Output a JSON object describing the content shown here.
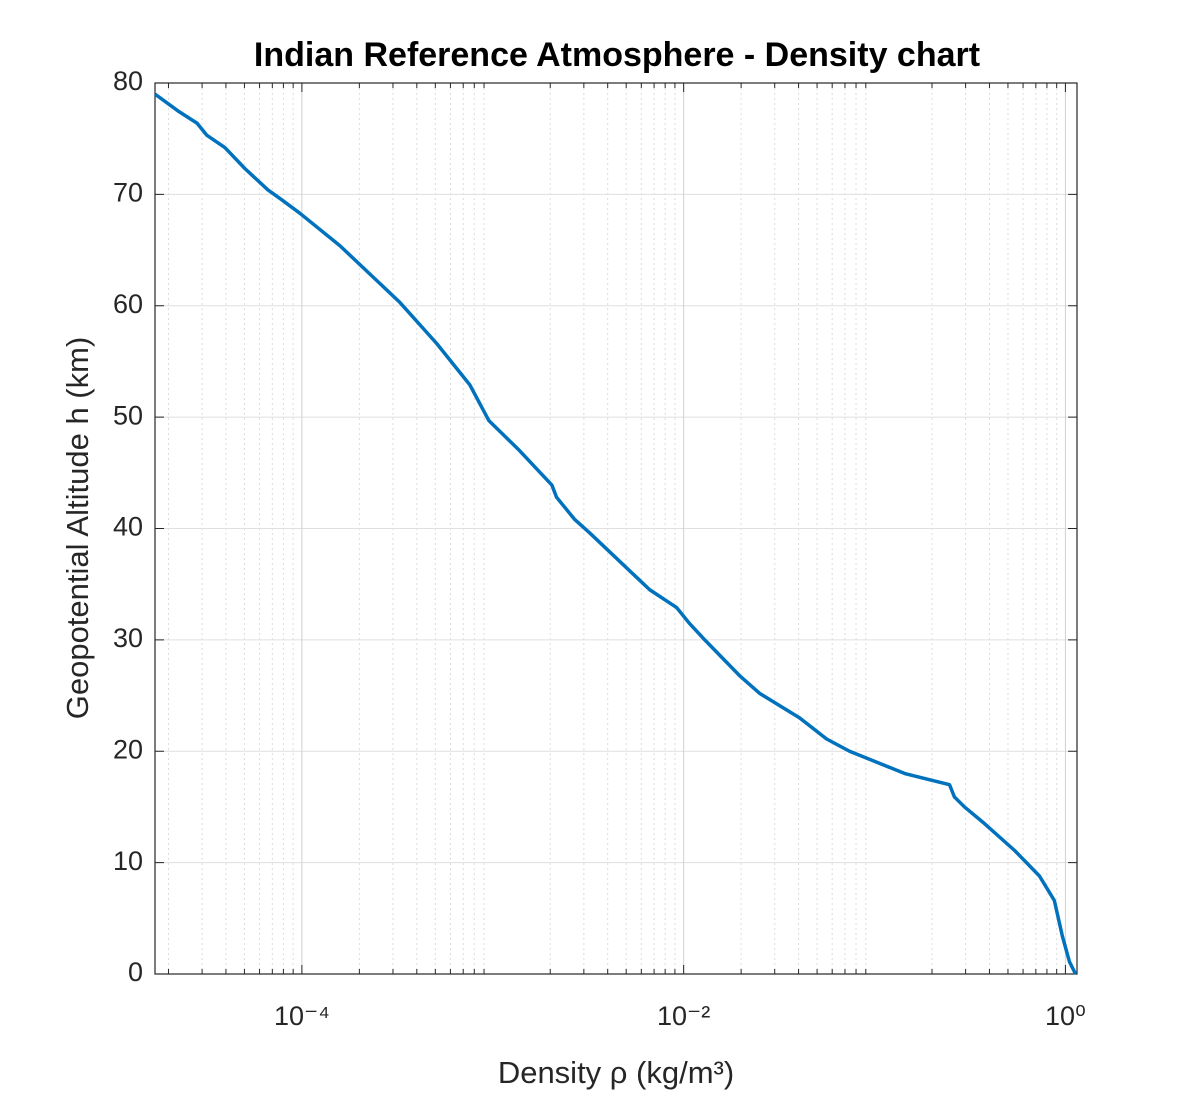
{
  "chart_data": {
    "type": "line",
    "title": "Indian Reference Atmosphere - Density chart",
    "x_label": "Density ρ (kg/m³)",
    "y_label": "Geopotential Altitude h (km)",
    "xscale": "log",
    "grid": true,
    "minor_grid": true,
    "xlim": [
      1.7e-05,
      1.15
    ],
    "ylim": [
      0,
      80
    ],
    "xticks": [
      {
        "value": 0.0001,
        "label": "10⁻⁴"
      },
      {
        "value": 0.01,
        "label": "10⁻²"
      },
      {
        "value": 1,
        "label": "10⁰"
      }
    ],
    "yticks": [
      0,
      10,
      20,
      30,
      40,
      50,
      60,
      70,
      80
    ],
    "series": [
      {
        "color": "#0072bd",
        "x": [
          1.7e-05,
          2.24e-05,
          2.82e-05,
          3.18e-05,
          3.95e-05,
          5.04e-05,
          6.64e-05,
          7.86e-05,
          9.77e-05,
          0.000158,
          0.000326,
          0.000509,
          0.000758,
          0.000953,
          0.00138,
          0.00204,
          0.00216,
          0.00269,
          0.00322,
          0.00664,
          0.00919,
          0.0107,
          0.0129,
          0.0196,
          0.025,
          0.0405,
          0.0561,
          0.074,
          0.144,
          0.247,
          0.262,
          0.296,
          0.377,
          0.541,
          0.731,
          0.875,
          0.964,
          1.05,
          1.13
        ],
        "values": [
          79,
          77.5,
          76.4,
          75.3,
          74.2,
          72.3,
          70.4,
          69.5,
          68.3,
          65.4,
          60.3,
          56.6,
          52.9,
          49.7,
          47.0,
          43.9,
          42.8,
          40.8,
          39.6,
          34.5,
          32.9,
          31.5,
          30.0,
          26.8,
          25.2,
          23.0,
          21.1,
          20.0,
          18.0,
          17.0,
          15.9,
          15.0,
          13.5,
          11.1,
          8.8,
          6.6,
          3.4,
          1.1,
          0
        ]
      }
    ]
  }
}
